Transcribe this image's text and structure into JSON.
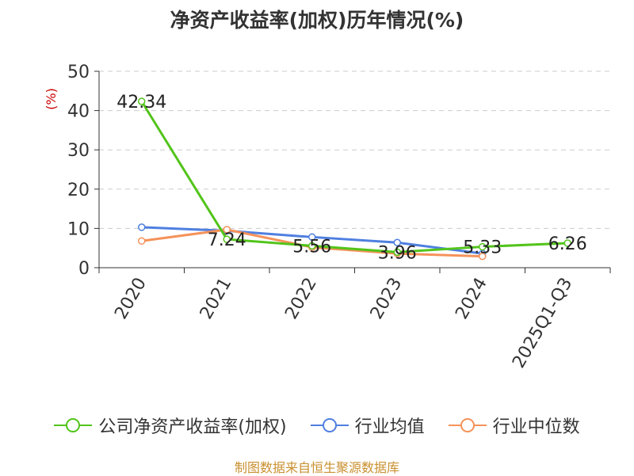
{
  "chart_data": {
    "type": "line",
    "title": "净资产收益率(加权)历年情况(%)",
    "ylabel": "(%)",
    "ylim": [
      0,
      50
    ],
    "yticks": [
      0,
      10,
      20,
      30,
      40,
      50
    ],
    "categories": [
      "2020",
      "2021",
      "2022",
      "2023",
      "2024",
      "2025Q1-Q3"
    ],
    "grid": true,
    "legend_position": "bottom",
    "series": [
      {
        "name": "公司净资产收益率(加权)",
        "color": "#52c41a",
        "values": [
          42.34,
          7.24,
          5.56,
          3.96,
          5.33,
          6.26
        ],
        "labels": [
          "42.34",
          "7.24",
          "5.56",
          "3.96",
          "5.33",
          "6.26"
        ]
      },
      {
        "name": "行业均值",
        "color": "#4f7fe0",
        "values": [
          10.3,
          9.4,
          7.8,
          6.4,
          3.6,
          null
        ]
      },
      {
        "name": "行业中位数",
        "color": "#f5925a",
        "values": [
          6.8,
          9.7,
          5.2,
          3.6,
          2.9,
          null
        ]
      }
    ]
  },
  "source": "制图数据来自恒生聚源数据库"
}
